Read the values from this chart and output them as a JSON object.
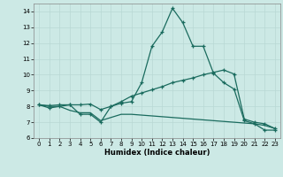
{
  "xlabel": "Humidex (Indice chaleur)",
  "xlim": [
    -0.5,
    23.5
  ],
  "ylim": [
    6,
    14.5
  ],
  "yticks": [
    6,
    7,
    8,
    9,
    10,
    11,
    12,
    13,
    14
  ],
  "xticks": [
    0,
    1,
    2,
    3,
    4,
    5,
    6,
    7,
    8,
    9,
    10,
    11,
    12,
    13,
    14,
    15,
    16,
    17,
    18,
    19,
    20,
    21,
    22,
    23
  ],
  "bg_color": "#cce9e5",
  "line_color": "#1a6b5e",
  "line1_x": [
    0,
    1,
    2,
    3,
    4,
    5,
    6,
    7,
    8,
    9,
    10,
    11,
    12,
    13,
    14,
    15,
    16,
    17,
    18,
    19,
    20,
    21,
    22,
    23
  ],
  "line1_y": [
    8.1,
    7.9,
    8.0,
    8.1,
    7.5,
    7.5,
    7.0,
    8.0,
    8.2,
    8.3,
    9.5,
    11.8,
    12.7,
    14.2,
    13.3,
    11.8,
    11.8,
    10.1,
    9.5,
    9.1,
    7.1,
    6.9,
    6.5,
    6.5
  ],
  "line2_x": [
    0,
    1,
    2,
    3,
    4,
    5,
    6,
    7,
    8,
    9,
    10,
    11,
    12,
    13,
    14,
    15,
    16,
    17,
    18,
    19,
    20,
    21,
    22,
    23
  ],
  "line2_y": [
    8.1,
    8.05,
    8.1,
    8.1,
    8.1,
    8.15,
    7.8,
    8.0,
    8.3,
    8.65,
    8.85,
    9.05,
    9.25,
    9.5,
    9.65,
    9.8,
    10.0,
    10.15,
    10.3,
    10.05,
    7.2,
    7.0,
    6.9,
    6.6
  ],
  "line3_x": [
    0,
    1,
    2,
    3,
    4,
    5,
    6,
    7,
    8,
    9,
    10,
    11,
    12,
    13,
    14,
    15,
    16,
    17,
    18,
    19,
    20,
    21,
    22,
    23
  ],
  "line3_y": [
    8.1,
    8.0,
    8.0,
    7.75,
    7.6,
    7.6,
    7.1,
    7.3,
    7.5,
    7.5,
    7.45,
    7.4,
    7.35,
    7.3,
    7.25,
    7.2,
    7.15,
    7.1,
    7.05,
    7.0,
    6.95,
    6.9,
    6.8,
    6.6
  ]
}
